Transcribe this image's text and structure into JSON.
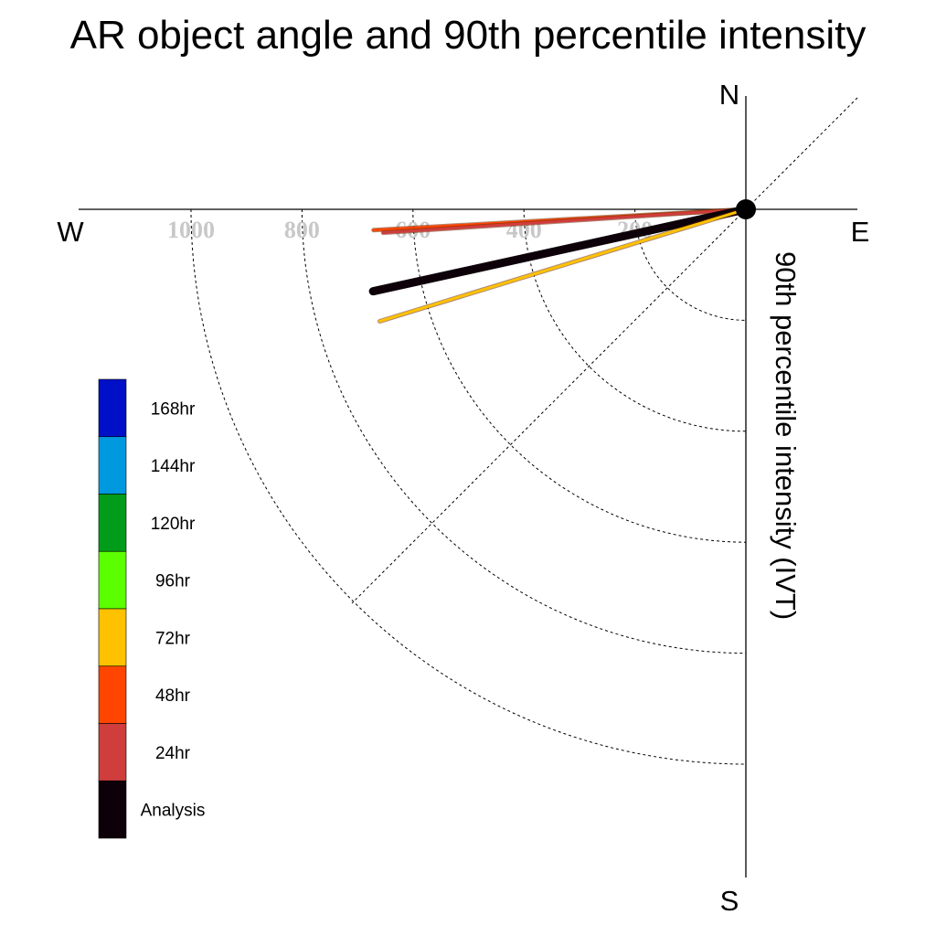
{
  "chart_data": {
    "type": "polar-line",
    "title": "AR object angle and 90th percentile intensity",
    "radial_label": "90th percentile intensity (IVT)",
    "directions": {
      "north": "N",
      "south": "S",
      "east": "E",
      "west": "W"
    },
    "radial_ticks": [
      "200",
      "400",
      "600",
      "800",
      "1000"
    ],
    "radial_tick_values": [
      200,
      400,
      600,
      800,
      1000
    ],
    "angle_convention": "degrees counter-clockwise from West; lines drawn from origin",
    "legend": [
      "168hr",
      "144hr",
      "120hr",
      "96hr",
      "72hr",
      "48hr",
      "24hr",
      "Analysis"
    ],
    "legend_colors": [
      "#0010c8",
      "#0099e0",
      "#009c1a",
      "#5cff00",
      "#ffc200",
      "#ff4500",
      "#cf3d3d",
      "#0d0008"
    ],
    "series": [
      {
        "name": "48hr",
        "color": "#ff4500",
        "angle": 3.2,
        "intensity": 672
      },
      {
        "name": "24hr",
        "color": "#cf3d3d",
        "angle": 3.7,
        "intensity": 655
      },
      {
        "name": "Analysis",
        "color": "#0d0008",
        "angle": 12.4,
        "intensity": 688
      },
      {
        "name": "72hr",
        "color": "#ffc200",
        "angle": 17.0,
        "intensity": 690
      }
    ]
  }
}
